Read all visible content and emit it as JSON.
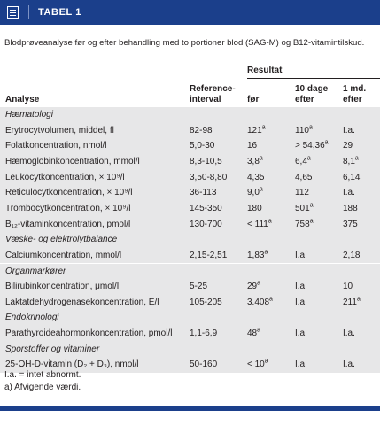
{
  "header": {
    "label": "TABEL 1"
  },
  "caption": "Blodprøveanalyse før og efter behandling med to portioner blod (SAG-M) og B12-vitamintilskud.",
  "columns": {
    "group": "Resultat",
    "analyse": "Analyse",
    "ref_line1": "Reference-",
    "ref_line2": "interval",
    "foer": "før",
    "d10_line1": "10 dage",
    "d10_line2": "efter",
    "m1_line1": "1 md.",
    "m1_line2": "efter"
  },
  "sections": [
    {
      "title": "Hæmatologi",
      "rows": [
        {
          "name": "Erytrocytvolumen, middel, fl",
          "ref": "82-98",
          "foer": "121",
          "foer_sup": "a",
          "d10": "110",
          "d10_sup": "a",
          "m1": "I.a.",
          "m1_sup": ""
        },
        {
          "name": "Folatkoncentration, nmol/l",
          "ref": "5,0-30",
          "foer": "16",
          "foer_sup": "",
          "d10": "> 54,36",
          "d10_sup": "a",
          "m1": "29",
          "m1_sup": ""
        },
        {
          "name": "Hæmoglobinkoncentration, mmol/l",
          "ref": "8,3-10,5",
          "foer": "3,8",
          "foer_sup": "a",
          "d10": "6,4",
          "d10_sup": "a",
          "m1": "8,1",
          "m1_sup": "a"
        },
        {
          "name": "Leukocytkoncentration, × 10⁹/l",
          "ref": "3,50-8,80",
          "foer": "4,35",
          "foer_sup": "",
          "d10": "4,65",
          "d10_sup": "",
          "m1": "6,14",
          "m1_sup": ""
        },
        {
          "name": "Reticulocytkoncentration, × 10⁹/l",
          "ref": "36-113",
          "foer": "9,0",
          "foer_sup": "a",
          "d10": "112",
          "d10_sup": "",
          "m1": "I.a.",
          "m1_sup": ""
        },
        {
          "name": "Trombocytkoncentration, × 10⁹/l",
          "ref": "145-350",
          "foer": "180",
          "foer_sup": "",
          "d10": "501",
          "d10_sup": "a",
          "m1": "188",
          "m1_sup": ""
        },
        {
          "name": "B₁₂-vitaminkoncentration, pmol/l",
          "ref": "130-700",
          "foer": "< 111",
          "foer_sup": "a",
          "d10": "758",
          "d10_sup": "a",
          "m1": "375",
          "m1_sup": ""
        }
      ]
    },
    {
      "title": "Væske- og elektrolytbalance",
      "rows": [
        {
          "name": "Calciumkoncentration, mmol/l",
          "ref": "2,15-2,51",
          "foer": "1,83",
          "foer_sup": "a",
          "d10": "I.a.",
          "d10_sup": "",
          "m1": "2,18",
          "m1_sup": ""
        }
      ]
    },
    {
      "title": "Organmarkører",
      "rows": [
        {
          "name": "Bilirubinkoncentration, μmol/l",
          "ref": "5-25",
          "foer": "29",
          "foer_sup": "a",
          "d10": "I.a.",
          "d10_sup": "",
          "m1": "10",
          "m1_sup": ""
        },
        {
          "name": "Laktatdehydrogenasekoncentration, E/l",
          "ref": "105-205",
          "foer": "3.408",
          "foer_sup": "a",
          "d10": "I.a.",
          "d10_sup": "",
          "m1": "211",
          "m1_sup": "a"
        }
      ]
    },
    {
      "title": "Endokrinologi",
      "rows": [
        {
          "name": "Parathyroideahormonkoncentration, pmol/l",
          "ref": "1,1-6,9",
          "foer": "48",
          "foer_sup": "a",
          "d10": "I.a.",
          "d10_sup": "",
          "m1": "I.a.",
          "m1_sup": ""
        }
      ]
    },
    {
      "title": "Sporstoffer og vitaminer",
      "rows": [
        {
          "name": "25-OH-D-vitamin (D₂ + D₃), nmol/l",
          "ref": "50-160",
          "foer": "< 10",
          "foer_sup": "a",
          "d10": "I.a.",
          "d10_sup": "",
          "m1": "I.a.",
          "m1_sup": ""
        }
      ]
    }
  ],
  "footnotes": [
    "I.a. = intet abnormt.",
    "a) Afvigende værdi."
  ],
  "colors": {
    "header_bg": "#1b3f8b",
    "row_shade": "#e7e7e8"
  }
}
